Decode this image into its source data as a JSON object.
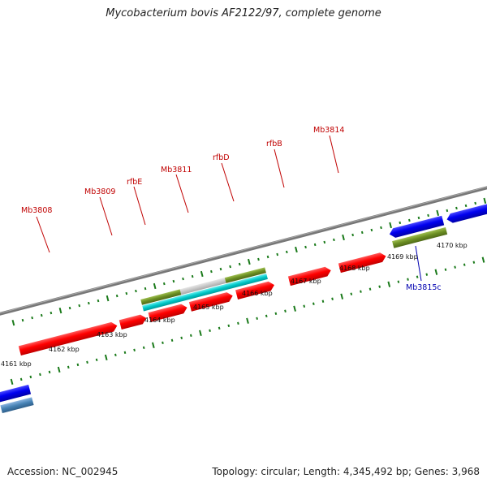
{
  "header": {
    "title": "Mycobacterium bovis AF2122/97, complete genome"
  },
  "footer": {
    "accession": "Accession: NC_002945",
    "summary": "Topology: circular; Length: 4,345,492 bp; Genes: 3,968"
  },
  "scale": {
    "labels": [
      "4161 kbp",
      "4162 kbp",
      "4163 kbp",
      "4164 kbp",
      "4165 kbp",
      "4166 kbp",
      "4167 kbp",
      "4168 kbp",
      "4169 kbp",
      "4170 kbp"
    ]
  },
  "genes": [
    {
      "name": "Mb3808",
      "color": "#c00000"
    },
    {
      "name": "Mb3809",
      "color": "#c00000"
    },
    {
      "name": "rfbE",
      "color": "#c00000"
    },
    {
      "name": "Mb3811",
      "color": "#c00000"
    },
    {
      "name": "rfbD",
      "color": "#c00000"
    },
    {
      "name": "rfbB",
      "color": "#c00000"
    },
    {
      "name": "Mb3814",
      "color": "#c00000"
    },
    {
      "name": "Mb3815c",
      "color": "#0000b0"
    }
  ],
  "colors": {
    "forward_gene": "#ff0000",
    "reverse_gene": "#0000ee",
    "feature_green": "#6b8e23",
    "feature_cyan": "#00c8c8",
    "feature_grey": "#c8c8c8",
    "backbone": "#808080",
    "tick": "#1a7a1a"
  }
}
